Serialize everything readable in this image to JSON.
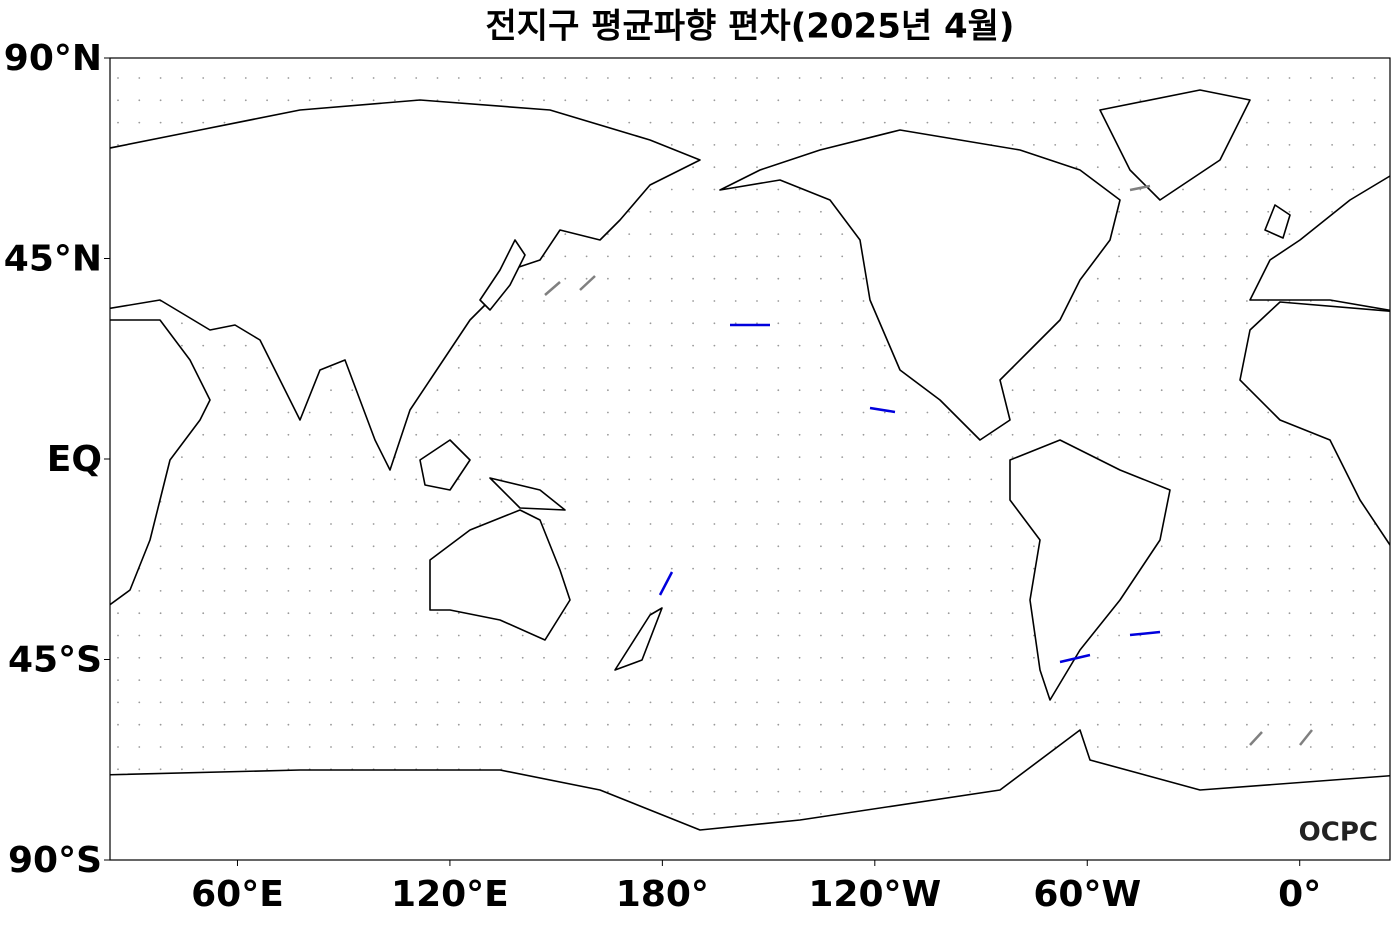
{
  "title": "전지구 평균파향 편차(2025년 4월)",
  "xlim": [
    24,
    385.5
  ],
  "ylim": [
    -90,
    90
  ],
  "xticks": [
    {
      "value": 60,
      "label": "60°E"
    },
    {
      "value": 120,
      "label": "120°E"
    },
    {
      "value": 180,
      "label": "180°"
    },
    {
      "value": -120,
      "label": "120°W"
    },
    {
      "value": -60,
      "label": "60°W"
    },
    {
      "value": 0,
      "label": "0°"
    }
  ],
  "yticks": [
    {
      "value": 90,
      "label": "90°N"
    },
    {
      "value": 45,
      "label": "45°N"
    },
    {
      "value": 0,
      "label": "EQ"
    },
    {
      "value": -45,
      "label": "45°S"
    },
    {
      "value": -90,
      "label": "90°S"
    }
  ],
  "logo": "OCPC"
}
